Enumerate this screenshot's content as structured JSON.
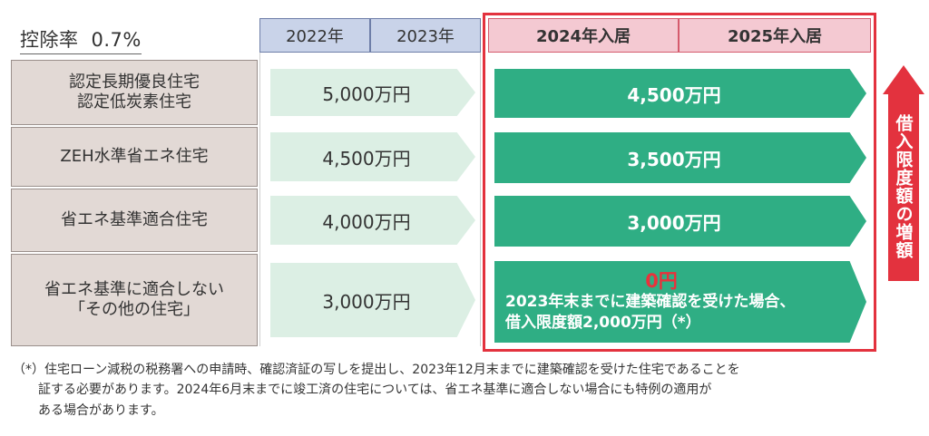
{
  "header": {
    "rate_label": "控除率",
    "rate_value": "0.7%",
    "years": [
      "2022年",
      "2023年",
      "2024年入居",
      "2025年入居"
    ]
  },
  "rows": [
    {
      "label_lines": [
        "認定長期優良住宅",
        "認定低炭素住宅"
      ],
      "value_2022_2023": "5,000万円",
      "value_2024_2025": "4,500万円"
    },
    {
      "label_lines": [
        "ZEH水準省エネ住宅"
      ],
      "value_2022_2023": "4,500万円",
      "value_2024_2025": "3,500万円"
    },
    {
      "label_lines": [
        "省エネ基準適合住宅"
      ],
      "value_2022_2023": "4,000万円",
      "value_2024_2025": "3,000万円"
    },
    {
      "label_lines": [
        "省エネ基準に適合しない",
        "「その他の住宅」"
      ],
      "value_2022_2023": "3,000万円",
      "value_2024_2025_main": "0円",
      "value_2024_2025_line1": "2023年末までに建築確認を受けた場合、",
      "value_2024_2025_line2": "借入限度額2,000万円（*）"
    }
  ],
  "side_arrow_label": "借入限度額の増額",
  "footnote_lines": [
    "（*）住宅ローン減税の税務署への申請時、確認済証の写しを提出し、2023年12月末までに建築確認を受けた住宅であることを",
    "　　証する必要があります。2024年6月末までに竣工済の住宅については、省エネ基準に適合しない場合にも特例の適用が",
    "　　ある場合があります。"
  ],
  "colors": {
    "accent_red": "#e3323e",
    "green_arrow": "#2fae84",
    "light_arrow": "#dcefe4",
    "label_bg": "#e2d9d5",
    "year_blue": "#c9d3e9",
    "year_pink": "#f4c9d2"
  }
}
